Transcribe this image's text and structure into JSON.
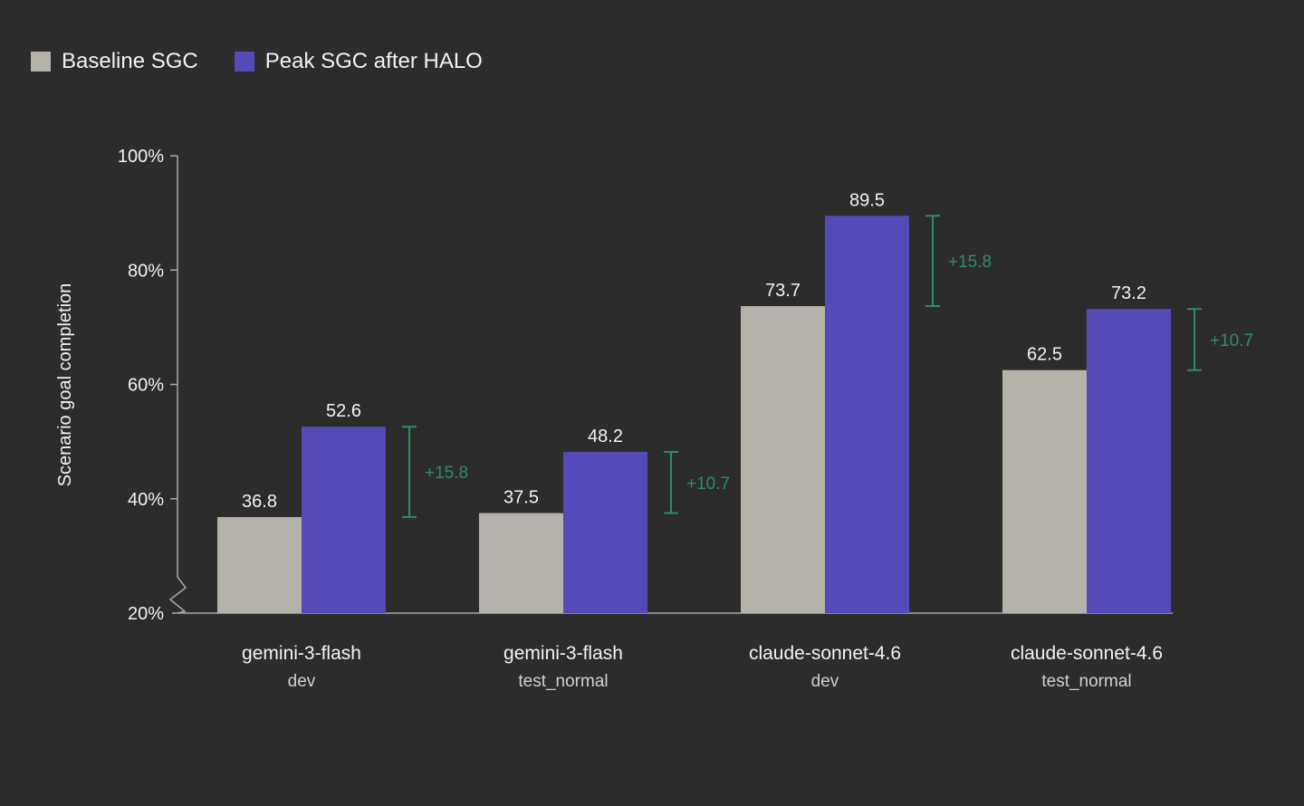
{
  "legend": [
    {
      "label": "Baseline SGC",
      "color": "#b5b2aa"
    },
    {
      "label": "Peak SGC after HALO",
      "color": "#544bb8"
    }
  ],
  "chart_data": {
    "type": "bar",
    "ylabel": "Scenario goal completion",
    "ylim": [
      20,
      100
    ],
    "yticks": [
      {
        "value": 20,
        "label": "20%"
      },
      {
        "value": 40,
        "label": "40%"
      },
      {
        "value": 60,
        "label": "60%"
      },
      {
        "value": 80,
        "label": "80%"
      },
      {
        "value": 100,
        "label": "100%"
      }
    ],
    "axis_break": true,
    "grid": false,
    "legend_position": "top-left",
    "categories": [
      {
        "name": "gemini-3-flash",
        "sub": "dev"
      },
      {
        "name": "gemini-3-flash",
        "sub": "test_normal"
      },
      {
        "name": "claude-sonnet-4.6",
        "sub": "dev"
      },
      {
        "name": "claude-sonnet-4.6",
        "sub": "test_normal"
      }
    ],
    "series": [
      {
        "name": "Baseline SGC",
        "color": "#b5b2aa",
        "values": [
          36.8,
          37.5,
          73.7,
          62.5
        ],
        "labels": [
          "36.8",
          "37.5",
          "73.7",
          "62.5"
        ]
      },
      {
        "name": "Peak SGC after HALO",
        "color": "#544bb8",
        "values": [
          52.6,
          48.2,
          89.5,
          73.2
        ],
        "labels": [
          "52.6",
          "48.2",
          "89.5",
          "73.2"
        ]
      }
    ],
    "deltas": [
      "+15.8",
      "+10.7",
      "+15.8",
      "+10.7"
    ],
    "delta_color": "#2e8c6a"
  }
}
